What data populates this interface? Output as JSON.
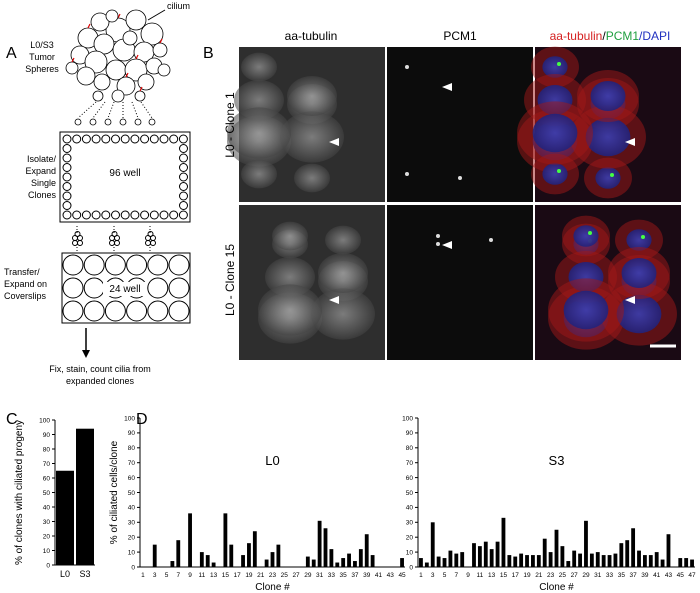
{
  "panel_labels": [
    "A",
    "B",
    "C",
    "D"
  ],
  "panel_a": {
    "cilium": "cilium",
    "spheres": [
      "L0/S3",
      "Tumor",
      "Spheres"
    ],
    "step1": [
      "Isolate/",
      "Expand",
      "Single",
      "Clones"
    ],
    "plate1": "96 well",
    "step2": [
      "Transfer/",
      "Expand on",
      "Coverslips"
    ],
    "plate2": "24 well",
    "step3": [
      "Fix, stain, count cilia from",
      "expanded clones"
    ]
  },
  "panel_b": {
    "headers": [
      "aa-tubulin",
      "PCM1"
    ],
    "merge_header": [
      "aa-tubulin",
      "/",
      "PCM1",
      "/DAPI"
    ],
    "rows": [
      "L0 - Clone 1",
      "L0 - Clone 15"
    ]
  },
  "chart_data": [
    {
      "type": "bar",
      "categories": [
        "L0",
        "S3"
      ],
      "values": [
        65,
        94
      ],
      "color": "#000000",
      "ylabel": "% of clones with ciliated progeny",
      "ylim": [
        0,
        100
      ],
      "yticks": [
        0,
        10,
        20,
        30,
        40,
        50,
        60,
        70,
        80,
        90,
        100
      ]
    },
    {
      "type": "bar",
      "title": "L0",
      "xlabel": "Clone #",
      "ylabel": "% of ciliated cells/clone",
      "color": "#000000",
      "categories": [
        "1",
        null,
        "3",
        null,
        "5",
        null,
        "7",
        null,
        "9",
        null,
        "11",
        null,
        "13",
        null,
        "15",
        null,
        "17",
        null,
        "19",
        null,
        "21",
        null,
        "23",
        null,
        "25",
        null,
        "27",
        null,
        "29",
        null,
        "31",
        null,
        "33",
        null,
        "35",
        null,
        "37",
        null,
        "39",
        null,
        "41",
        null,
        "43",
        null,
        "45"
      ],
      "values": [
        0,
        0,
        15,
        0,
        0,
        4,
        18,
        0,
        36,
        0,
        10,
        8,
        3,
        0,
        36,
        15,
        0,
        8,
        16,
        24,
        0,
        5,
        10,
        15,
        0,
        0,
        0,
        0,
        7,
        5,
        31,
        26,
        12,
        3,
        6,
        9,
        4,
        12,
        22,
        8,
        0,
        0,
        0,
        0,
        6
      ],
      "ylim": [
        0,
        100
      ],
      "yticks": [
        0,
        10,
        20,
        30,
        40,
        50,
        60,
        70,
        80,
        90,
        100
      ]
    },
    {
      "type": "bar",
      "title": "S3",
      "xlabel": "Clone #",
      "color": "#000000",
      "categories": [
        "1",
        null,
        "3",
        null,
        "5",
        null,
        "7",
        null,
        "9",
        null,
        "11",
        null,
        "13",
        null,
        "15",
        null,
        "17",
        null,
        "19",
        null,
        "21",
        null,
        "23",
        null,
        "25",
        null,
        "27",
        null,
        "29",
        null,
        "31",
        null,
        "33",
        null,
        "35",
        null,
        "37",
        null,
        "39",
        null,
        "41",
        null,
        "43",
        null,
        "45",
        null,
        "47"
      ],
      "values": [
        6,
        3,
        30,
        7,
        6,
        11,
        9,
        10,
        0,
        16,
        14,
        17,
        12,
        17,
        33,
        8,
        7,
        9,
        8,
        8,
        8,
        19,
        10,
        25,
        14,
        4,
        11,
        9,
        31,
        9,
        10,
        8,
        8,
        9,
        16,
        18,
        26,
        11,
        8,
        8,
        10,
        5,
        22,
        0,
        6,
        6,
        5
      ],
      "ylim": [
        0,
        100
      ],
      "yticks": [
        0,
        10,
        20,
        30,
        40,
        50,
        60,
        70,
        80,
        90,
        100
      ]
    }
  ]
}
